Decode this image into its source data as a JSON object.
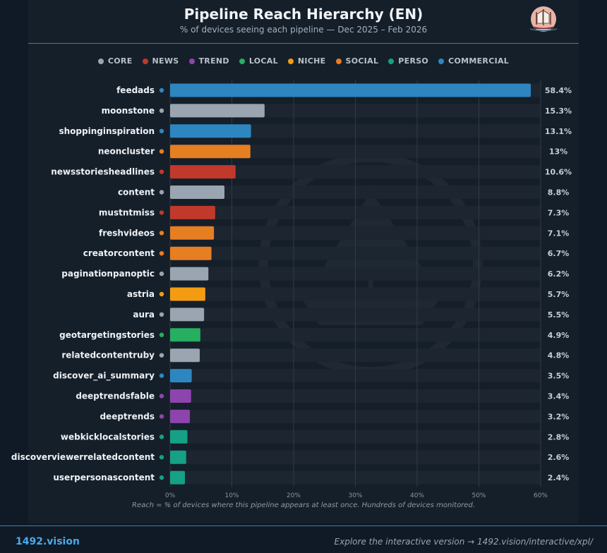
{
  "header": {
    "title": "Pipeline Reach Hierarchy (EN)",
    "subtitle": "% of devices seeing each pipeline — Dec 2025 – Feb 2026"
  },
  "logo_icon": "ship-logo-icon",
  "legend": [
    {
      "label": "CORE",
      "color": "#9aa5b1"
    },
    {
      "label": "NEWS",
      "color": "#c0392b"
    },
    {
      "label": "TREND",
      "color": "#8e44ad"
    },
    {
      "label": "LOCAL",
      "color": "#27ae60"
    },
    {
      "label": "NICHE",
      "color": "#f39c12"
    },
    {
      "label": "SOCIAL",
      "color": "#e67e22"
    },
    {
      "label": "PERSO",
      "color": "#16a085"
    },
    {
      "label": "COMMERCIAL",
      "color": "#2e86c1"
    }
  ],
  "chart_data": {
    "type": "bar",
    "orientation": "horizontal",
    "title": "Pipeline Reach Hierarchy (EN)",
    "subtitle": "% of devices seeing each pipeline — Dec 2025 – Feb 2026",
    "xlim": [
      0,
      60
    ],
    "xticks": [
      "0%",
      "10%",
      "20%",
      "30%",
      "40%",
      "50%",
      "60%"
    ],
    "grid": true,
    "legend_position": "top",
    "categories": [
      "feedads",
      "moonstone",
      "shoppinginspiration",
      "neoncluster",
      "newsstoriesheadlines",
      "content",
      "mustntmiss",
      "freshvideos",
      "creatorcontent",
      "paginationpanoptic",
      "astria",
      "aura",
      "geotargetingstories",
      "relatedcontentruby",
      "discover_ai_summary",
      "deeptrendsfable",
      "deeptrends",
      "webkicklocalstories",
      "discoverviewerrelatedcontent",
      "userpersonascontent"
    ],
    "values": [
      58.4,
      15.3,
      13.1,
      13,
      10.6,
      8.8,
      7.3,
      7.1,
      6.7,
      6.2,
      5.7,
      5.5,
      4.9,
      4.8,
      3.5,
      3.4,
      3.2,
      2.8,
      2.6,
      2.4
    ],
    "value_labels": [
      "58.4%",
      "15.3%",
      "13.1%",
      "13%",
      "10.6%",
      "8.8%",
      "7.3%",
      "7.1%",
      "6.7%",
      "6.2%",
      "5.7%",
      "5.5%",
      "4.9%",
      "4.8%",
      "3.5%",
      "3.4%",
      "3.2%",
      "2.8%",
      "2.6%",
      "2.4%"
    ],
    "groups": [
      "COMMERCIAL",
      "CORE",
      "COMMERCIAL",
      "SOCIAL",
      "NEWS",
      "CORE",
      "NEWS",
      "SOCIAL",
      "SOCIAL",
      "CORE",
      "NICHE",
      "CORE",
      "LOCAL",
      "CORE",
      "COMMERCIAL",
      "TREND",
      "TREND",
      "PERSO",
      "PERSO",
      "PERSO"
    ]
  },
  "note": "Reach = % of devices where this pipeline appears at least once. Hundreds of devices monitored.",
  "footer": {
    "brand": "1492.vision",
    "explore": "Explore the interactive version → 1492.vision/interactive/xpl/"
  }
}
